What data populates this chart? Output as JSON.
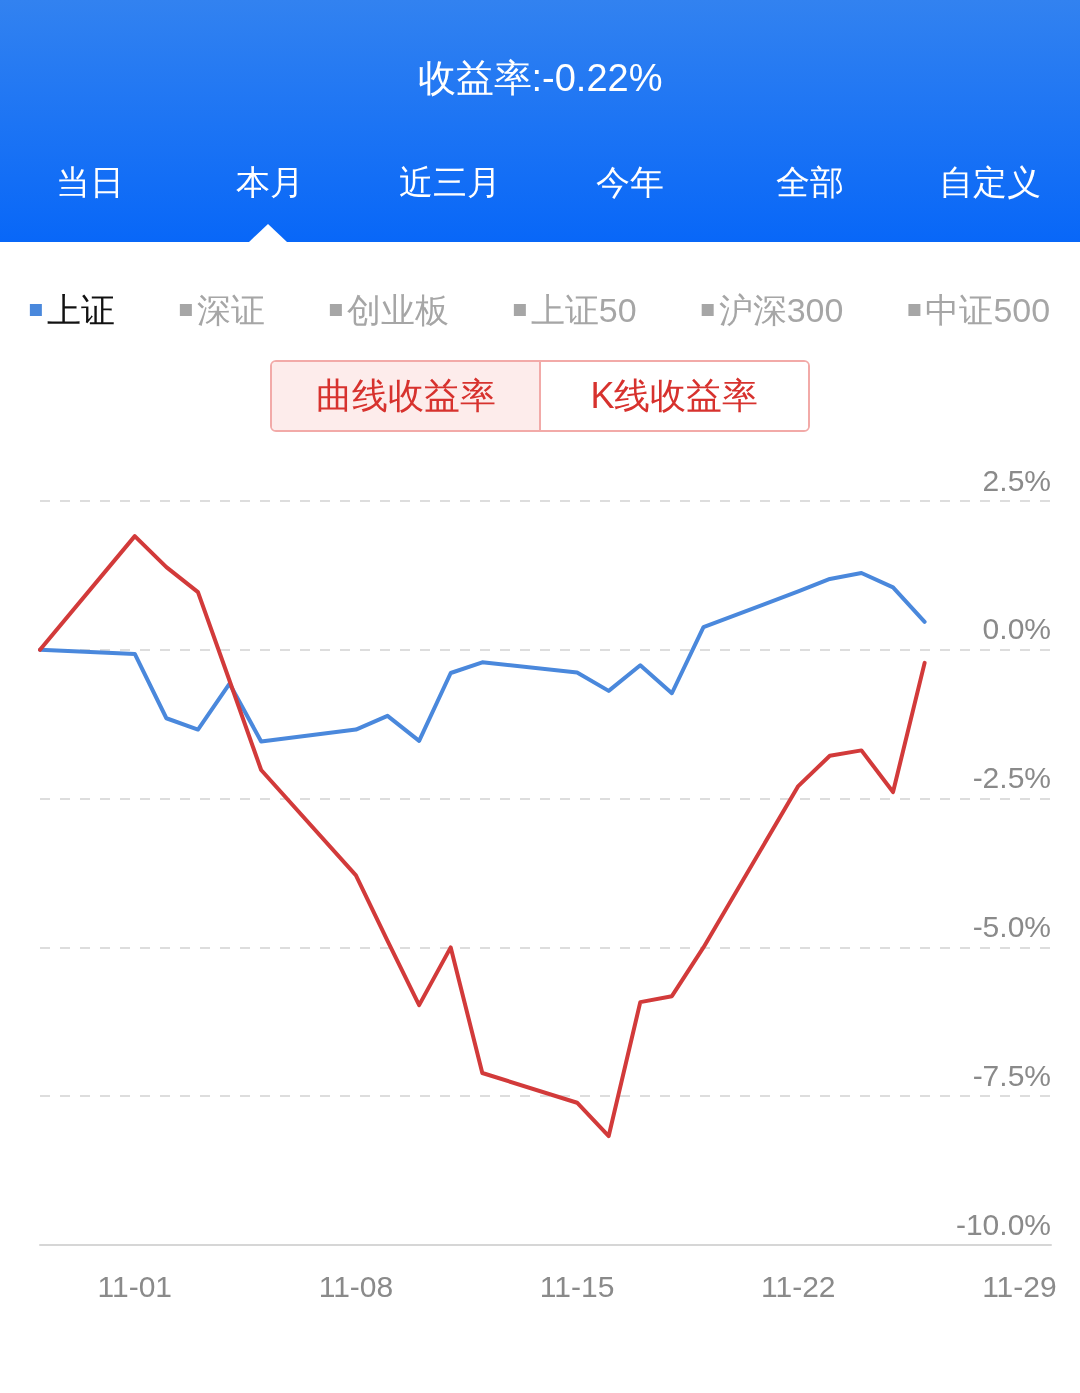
{
  "chart_data": {
    "type": "line",
    "title": "收益率:-0.22%",
    "annotations": [
      "当日",
      "本月",
      "近三月",
      "今年",
      "全部",
      "自定义",
      "曲线收益率",
      "K线收益率"
    ],
    "x": [
      "--10-29",
      "--11-01",
      "--11-02",
      "--11-03",
      "--11-04",
      "--11-05",
      "--11-08",
      "--11-09",
      "--11-10",
      "--11-11",
      "--11-12",
      "--11-15",
      "--11-16",
      "--11-17",
      "--11-18",
      "--11-19",
      "--11-22",
      "--11-23",
      "--11-24",
      "--11-25",
      "--11-26"
    ],
    "series": [
      {
        "name": "上证",
        "color": "#4a88dc",
        "values": [
          0,
          -0.07,
          -1.15,
          -1.34,
          -0.57,
          -1.54,
          -1.34,
          -1.11,
          -1.53,
          -0.39,
          -0.21,
          -0.38,
          -0.69,
          -0.26,
          -0.73,
          0.38,
          0.98,
          1.19,
          1.29,
          1.05,
          0.47
        ]
      },
      {
        "color": "#d23a3a",
        "values": [
          0,
          1.91,
          1.39,
          0.97,
          -0.52,
          -2.02,
          -3.79,
          -4.89,
          -5.97,
          -5.0,
          -7.11,
          -7.61,
          -8.17,
          -5.92,
          -5.82,
          -5.0,
          -2.29,
          -1.78,
          -1.69,
          -2.39,
          -0.22
        ]
      },
      {
        "name": "深证",
        "values": [
          null,
          null,
          null,
          null,
          null,
          null,
          null,
          null,
          null,
          null,
          null,
          null,
          null,
          null,
          null,
          null,
          null,
          null,
          null,
          null,
          null
        ]
      },
      {
        "name": "创业板",
        "values": [
          null,
          null,
          null,
          null,
          null,
          null,
          null,
          null,
          null,
          null,
          null,
          null,
          null,
          null,
          null,
          null,
          null,
          null,
          null,
          null,
          null
        ]
      },
      {
        "name": "上证50",
        "values": [
          null,
          null,
          null,
          null,
          null,
          null,
          null,
          null,
          null,
          null,
          null,
          null,
          null,
          null,
          null,
          null,
          null,
          null,
          null,
          null,
          null
        ]
      },
      {
        "name": "沪深300",
        "values": [
          null,
          null,
          null,
          null,
          null,
          null,
          null,
          null,
          null,
          null,
          null,
          null,
          null,
          null,
          null,
          null,
          null,
          null,
          null,
          null,
          null
        ]
      },
      {
        "name": "中证500",
        "values": [
          null,
          null,
          null,
          null,
          null,
          null,
          null,
          null,
          null,
          null,
          null,
          null,
          null,
          null,
          null,
          null,
          null,
          null,
          null,
          null,
          null
        ]
      }
    ],
    "xlim": [
      "--10-29",
      "--11-30"
    ],
    "xticks": [
      {
        "value": "--11-01",
        "label": "11-01"
      },
      {
        "value": "--11-08",
        "label": "11-08"
      },
      {
        "value": "--11-15",
        "label": "11-15"
      },
      {
        "value": "--11-22",
        "label": "11-22"
      },
      {
        "value": "--11-29",
        "label": "11-29"
      }
    ],
    "ylim": [
      -10,
      2.5
    ],
    "yticks": [
      {
        "value": 2.5,
        "label": "2.5%"
      },
      {
        "value": 0,
        "label": "0.0%"
      },
      {
        "value": -2.5,
        "label": "-2.5%"
      },
      {
        "value": -5,
        "label": "-5.0%"
      },
      {
        "value": -7.5,
        "label": "-7.5%"
      },
      {
        "value": -10,
        "label": "-10.0%"
      }
    ],
    "grid": "y",
    "legend": "top",
    "marker": "none",
    "line_style": "solid"
  }
}
